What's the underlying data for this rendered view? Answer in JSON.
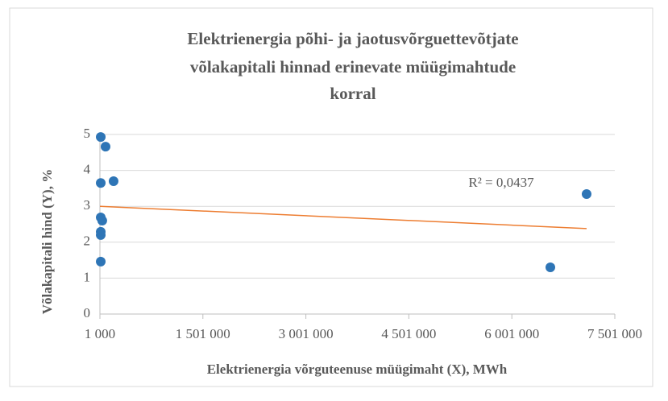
{
  "chart_data": {
    "type": "scatter",
    "title": [
      "Elektrienergia põhi- ja jaotusvõrguettevõtjate",
      "võlakapitali hinnad  erinevate müügimahtude",
      "korral"
    ],
    "x_label": "Elektrienergia võrguteenuse müügimaht  (X), MWh",
    "y_label": "Võlakapitali  hind (Y),  %",
    "series": [
      {
        "name": "Võlakapitali hind",
        "color": "#2e75b6",
        "x": [
          13000,
          83000,
          200000,
          13000,
          13000,
          35000,
          13000,
          13000,
          13000,
          6562000,
          7090000
        ],
        "values": [
          4.93,
          4.66,
          3.7,
          3.65,
          2.69,
          2.6,
          2.29,
          2.2,
          1.46,
          1.3,
          3.34
        ]
      }
    ],
    "trendline": {
      "color": "#ed7d31",
      "x": [
        1000,
        7090000
      ],
      "values": [
        3.0,
        2.38
      ]
    },
    "annotation": "R² = 0,0437",
    "xlim": [
      1000,
      7501000
    ],
    "xticks": [
      {
        "value": 1000,
        "label": "1 000"
      },
      {
        "value": 1501000,
        "label": "1 501 000"
      },
      {
        "value": 3001000,
        "label": "3 001 000"
      },
      {
        "value": 4501000,
        "label": "4 501 000"
      },
      {
        "value": 6001000,
        "label": "6 001 000"
      },
      {
        "value": 7501000,
        "label": "7 501 000"
      }
    ],
    "ylim": [
      0,
      5
    ],
    "yticks": [
      0,
      1,
      2,
      3,
      4,
      5
    ],
    "grid": true
  }
}
